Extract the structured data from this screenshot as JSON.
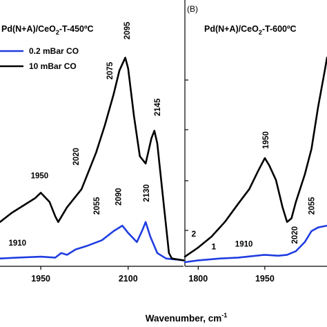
{
  "chart_data": [
    {
      "type": "line",
      "panel_label": "",
      "title_prefix": "Pd(N+A)/CeO",
      "title_sub": "2",
      "title_suffix": "-T-450ºC",
      "xlabel": "Wavenumber, cm-1",
      "xlim": [
        1880,
        2195
      ],
      "xticks": [
        1950,
        2100
      ],
      "legend": [
        {
          "label": "0.2 mBar CO",
          "color": "#1f3de0"
        },
        {
          "label": "10 mBar CO",
          "color": "#000000"
        }
      ],
      "series": [
        {
          "name": "0.2 mBar CO",
          "color": "#1f3de0",
          "points": [
            [
              1880,
              0.02
            ],
            [
              1910,
              0.025
            ],
            [
              1950,
              0.03
            ],
            [
              1975,
              0.025
            ],
            [
              1985,
              0.05
            ],
            [
              1995,
              0.04
            ],
            [
              2010,
              0.07
            ],
            [
              2030,
              0.09
            ],
            [
              2055,
              0.12
            ],
            [
              2075,
              0.17
            ],
            [
              2090,
              0.2
            ],
            [
              2100,
              0.16
            ],
            [
              2115,
              0.11
            ],
            [
              2125,
              0.18
            ],
            [
              2130,
              0.22
            ],
            [
              2138,
              0.14
            ],
            [
              2150,
              0.05
            ],
            [
              2165,
              0.02
            ],
            [
              2195,
              0.01
            ]
          ]
        },
        {
          "name": "10 mBar CO",
          "color": "#000000",
          "points": [
            [
              1880,
              0.22
            ],
            [
              1900,
              0.27
            ],
            [
              1920,
              0.31
            ],
            [
              1940,
              0.35
            ],
            [
              1950,
              0.38
            ],
            [
              1965,
              0.33
            ],
            [
              1975,
              0.25
            ],
            [
              1980,
              0.22
            ],
            [
              1995,
              0.3
            ],
            [
              2020,
              0.4
            ],
            [
              2045,
              0.6
            ],
            [
              2060,
              0.75
            ],
            [
              2075,
              0.92
            ],
            [
              2085,
              1.05
            ],
            [
              2095,
              1.12
            ],
            [
              2100,
              1.06
            ],
            [
              2110,
              0.8
            ],
            [
              2120,
              0.58
            ],
            [
              2130,
              0.54
            ],
            [
              2140,
              0.68
            ],
            [
              2145,
              0.72
            ],
            [
              2150,
              0.65
            ],
            [
              2160,
              0.35
            ],
            [
              2170,
              0.05
            ],
            [
              2175,
              0.02
            ],
            [
              2195,
              0.01
            ]
          ]
        }
      ],
      "annotations": [
        {
          "text": "1910",
          "x": 1910,
          "y": 0.09,
          "rotate": false,
          "color": "#000000"
        },
        {
          "text": "1950",
          "x": 1948,
          "y": 0.46,
          "rotate": false,
          "color": "#000000"
        },
        {
          "text": "2020",
          "x": 2010,
          "y": 0.53,
          "rotate": true,
          "color": "#000000"
        },
        {
          "text": "2075",
          "x": 2068,
          "y": 1.0,
          "rotate": true,
          "color": "#000000"
        },
        {
          "text": "2095",
          "x": 2098,
          "y": 1.22,
          "rotate": true,
          "color": "#000000"
        },
        {
          "text": "2145",
          "x": 2150,
          "y": 0.8,
          "rotate": true,
          "color": "#000000"
        },
        {
          "text": "2055",
          "x": 2046,
          "y": 0.26,
          "rotate": true,
          "color": "#000000"
        },
        {
          "text": "2090",
          "x": 2083,
          "y": 0.31,
          "rotate": true,
          "color": "#000000"
        },
        {
          "text": "2130",
          "x": 2131,
          "y": 0.33,
          "rotate": true,
          "color": "#000000"
        }
      ]
    },
    {
      "type": "line",
      "panel_label": "(B)",
      "title_prefix": "Pd(N+A)/CeO",
      "title_sub": "2",
      "title_suffix": "-T-600ºC",
      "xlabel": "",
      "xlim": [
        1770,
        2090
      ],
      "xticks": [
        1800,
        1950
      ],
      "series": [
        {
          "name": "",
          "color": "#000000",
          "points": [
            [
              1770,
              0.03
            ],
            [
              1800,
              0.08
            ],
            [
              1830,
              0.14
            ],
            [
              1860,
              0.22
            ],
            [
              1890,
              0.32
            ],
            [
              1915,
              0.4
            ],
            [
              1935,
              0.5
            ],
            [
              1950,
              0.57
            ],
            [
              1960,
              0.53
            ],
            [
              1975,
              0.45
            ],
            [
              1990,
              0.3
            ],
            [
              2000,
              0.22
            ],
            [
              2010,
              0.24
            ],
            [
              2020,
              0.33
            ],
            [
              2040,
              0.48
            ],
            [
              2055,
              0.62
            ],
            [
              2070,
              0.85
            ],
            [
              2085,
              1.05
            ],
            [
              2090,
              1.12
            ]
          ]
        },
        {
          "name": "",
          "color": "#1f3de0",
          "points": [
            [
              1770,
              0.0
            ],
            [
              1800,
              0.01
            ],
            [
              1850,
              0.02
            ],
            [
              1890,
              0.025
            ],
            [
              1910,
              0.03
            ],
            [
              1950,
              0.04
            ],
            [
              1980,
              0.035
            ],
            [
              2000,
              0.04
            ],
            [
              2020,
              0.06
            ],
            [
              2040,
              0.11
            ],
            [
              2055,
              0.17
            ],
            [
              2070,
              0.19
            ],
            [
              2090,
              0.2
            ]
          ]
        }
      ],
      "curve_numbers": [
        {
          "text": "2",
          "x": 1790,
          "y": 0.14
        },
        {
          "text": "1",
          "x": 1835,
          "y": 0.07
        }
      ],
      "annotations": [
        {
          "text": "1910",
          "x": 1903,
          "y": 0.085,
          "rotate": false,
          "color": "#000000"
        },
        {
          "text": "1950",
          "x": 1952,
          "y": 0.62,
          "rotate": true,
          "color": "#000000"
        },
        {
          "text": "2020",
          "x": 2017,
          "y": 0.1,
          "rotate": true,
          "color": "#000000"
        },
        {
          "text": "2055",
          "x": 2055,
          "y": 0.26,
          "rotate": true,
          "color": "#000000"
        }
      ]
    }
  ]
}
